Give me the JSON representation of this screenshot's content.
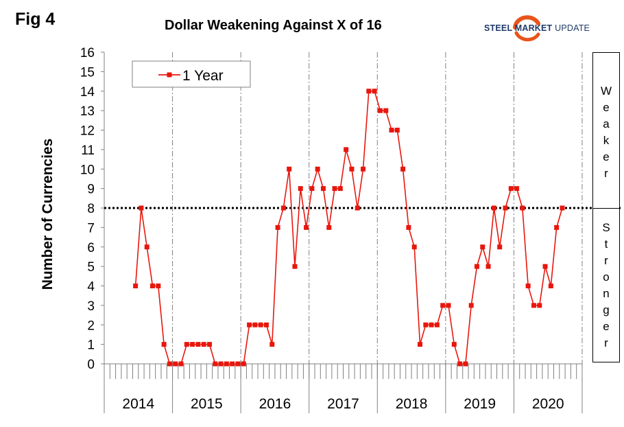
{
  "figure_label": "Fig 4",
  "brand": {
    "name": "STEEL MARKET",
    "suffix": "UPDATE",
    "colors": {
      "text": "#1f3a68",
      "arc": "#e8541b"
    }
  },
  "side_labels": {
    "upper": "Weaker",
    "lower": "Stronger"
  },
  "chart_data": {
    "type": "line",
    "title": "Dollar Weakening Against X of 16",
    "xlabel": "",
    "ylabel": "Number of Currencies",
    "ylim": [
      0,
      16
    ],
    "yticks": [
      0,
      1,
      2,
      3,
      4,
      5,
      6,
      7,
      8,
      9,
      10,
      11,
      12,
      13,
      14,
      15,
      16
    ],
    "year_groups": [
      "2014",
      "2015",
      "2016",
      "2017",
      "2018",
      "2019",
      "2020"
    ],
    "months_per_year": 12,
    "grid": "vertical dash-dot lines at year boundaries",
    "reference_line": {
      "y": 8,
      "style": "dotted"
    },
    "legend": {
      "position": "top-left"
    },
    "colors": {
      "series": "#e8160c"
    },
    "series": [
      {
        "name": "1 Year",
        "start": "2014-06",
        "values": [
          4,
          8,
          6,
          4,
          4,
          1,
          0,
          0,
          0,
          1,
          1,
          1,
          1,
          1,
          0,
          0,
          0,
          0,
          0,
          0,
          2,
          2,
          2,
          2,
          1,
          7,
          8,
          10,
          5,
          9,
          7,
          9,
          10,
          9,
          7,
          9,
          9,
          11,
          10,
          8,
          10,
          14,
          14,
          13,
          13,
          12,
          12,
          10,
          7,
          6,
          1,
          2,
          2,
          2,
          3,
          3,
          1,
          0,
          0,
          3,
          5,
          6,
          5,
          8,
          6,
          8,
          9,
          9,
          8,
          4,
          3,
          3,
          5,
          4,
          7,
          8
        ]
      }
    ]
  }
}
